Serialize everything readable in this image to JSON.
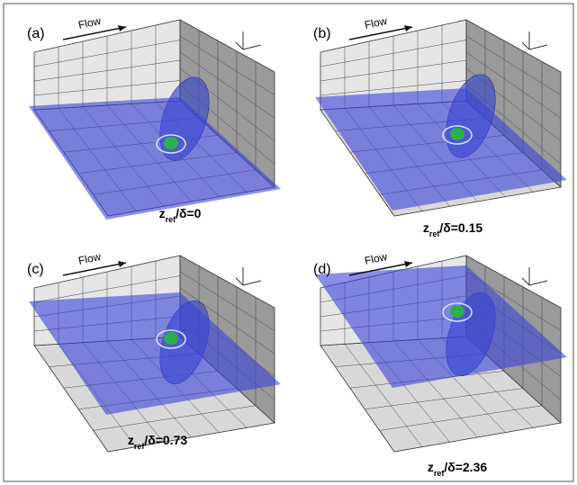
{
  "panels": [
    {
      "label": "(a)",
      "flow": "Flow",
      "caption": {
        "symbol": "z",
        "subscript": "ref",
        "text": "/δ=0"
      }
    },
    {
      "label": "(b)",
      "flow": "Flow",
      "caption": {
        "symbol": "z",
        "subscript": "ref",
        "text": "/δ=0.15"
      }
    },
    {
      "label": "(c)",
      "flow": "Flow",
      "caption": {
        "symbol": "z",
        "subscript": "ref",
        "text": "/δ=0.73"
      }
    },
    {
      "label": "(d)",
      "flow": "Flow",
      "caption": {
        "symbol": "z",
        "subscript": "ref",
        "text": "/δ=2.36"
      }
    }
  ]
}
